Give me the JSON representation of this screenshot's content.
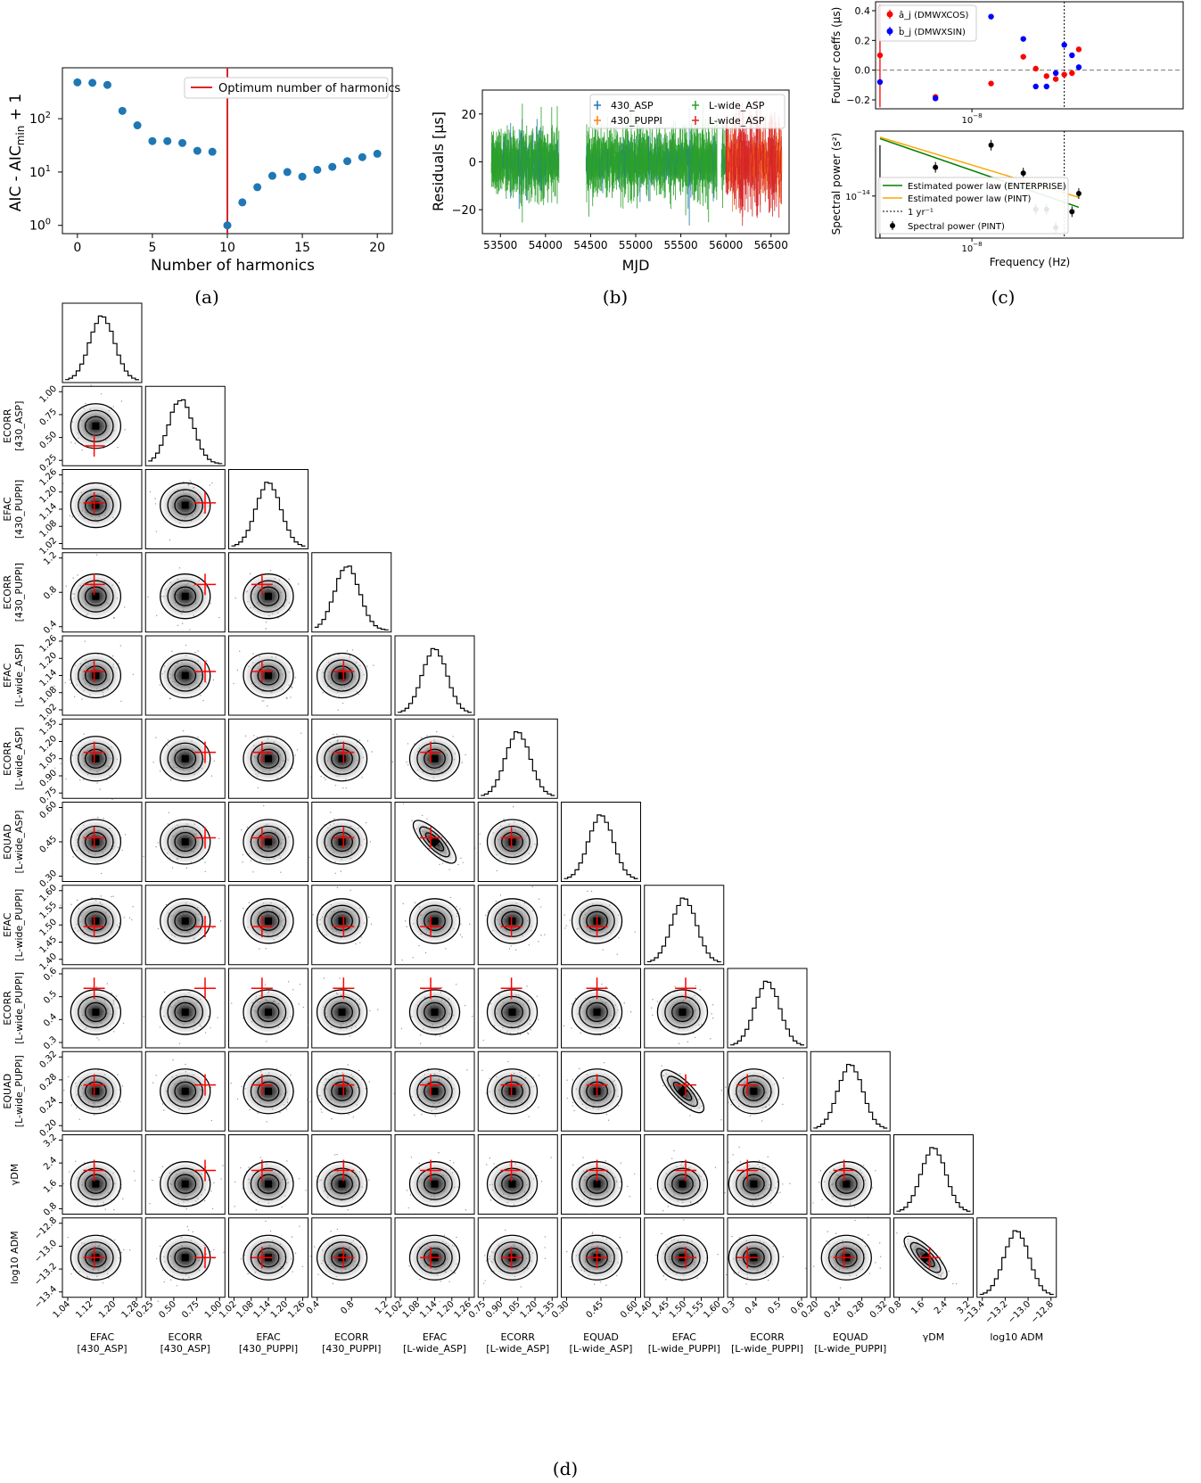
{
  "chart_data": [
    {
      "type": "scatter",
      "xlabel": "Number of harmonics",
      "ylabel": "AIC - AIC$_{\\rm min}$ + 1",
      "ylabel_parts": [
        "AIC - AIC",
        "min",
        " + 1"
      ],
      "yscale": "log",
      "xlim": [
        -1,
        21
      ],
      "ylim": [
        0.7,
        900
      ],
      "xticks": [
        "0",
        "5",
        "10",
        "15",
        "20"
      ],
      "yticks": [
        "10",
        "10",
        "10"
      ],
      "ytick_exp": [
        "0",
        "1",
        "2"
      ],
      "x": [
        0,
        1,
        2,
        3,
        4,
        5,
        6,
        7,
        8,
        9,
        10,
        11,
        12,
        13,
        14,
        15,
        16,
        17,
        18,
        19,
        20
      ],
      "y": [
        480,
        470,
        430,
        140,
        75,
        38,
        38,
        35,
        25,
        24,
        1,
        2.7,
        5.2,
        8.5,
        10,
        8.2,
        11,
        12.5,
        16,
        19,
        22
      ],
      "vline": 10,
      "legend": [
        "Optimum number of harmonics"
      ],
      "caption": "(a)"
    },
    {
      "type": "scatter",
      "xlabel": "MJD",
      "ylabel": "Residuals [μs]",
      "xlim": [
        53300,
        56700
      ],
      "ylim": [
        -30,
        30
      ],
      "xticks": [
        "53500",
        "54000",
        "54500",
        "55000",
        "55500",
        "56000",
        "56500"
      ],
      "xtick_values": [
        53500,
        54000,
        54500,
        55000,
        55500,
        56000,
        56500
      ],
      "yticks": [
        "20",
        "0",
        "−20"
      ],
      "ytick_values": [
        20,
        0,
        -20
      ],
      "segments": [
        [
          53400,
          54150
        ],
        [
          54450,
          55900
        ],
        [
          55950,
          56620
        ]
      ],
      "series": [
        {
          "name": "430_ASP",
          "color": "#1f77b4"
        },
        {
          "name": "430_PUPPI",
          "color": "#ff7f0e"
        },
        {
          "name": "L-wide_ASP",
          "color": "#2ca02c"
        },
        {
          "name": "L-wide_ASP",
          "color": "#d62728"
        }
      ],
      "caption": "(b)"
    },
    {
      "type": "scatter",
      "ylabel": "Fourier coeffs (μs)",
      "xscale": "log",
      "xlim": [
        3e-09,
        1.4e-07
      ],
      "ylim": [
        -0.26,
        0.46
      ],
      "yticks": [
        "0.4",
        "0.2",
        "0.0",
        "−0.2"
      ],
      "ytick_values": [
        0.4,
        0.2,
        0.0,
        -0.2
      ],
      "xtick_label": "10",
      "xtick_exp": "−8",
      "series": [
        {
          "name": "â_j (DMWXCOS)",
          "color": "#ff0000",
          "x": [
            3.17e-09,
            6.34e-09,
            9.51e-09,
            1.27e-08,
            1.59e-08,
            1.9e-08,
            2.22e-08,
            2.54e-08,
            2.85e-08,
            3.17e-08,
            3.49e-08,
            3.8e-08
          ],
          "y": [
            0.1,
            -0.18,
            0.0,
            -0.09,
            0.0,
            0.09,
            0.01,
            -0.04,
            -0.06,
            -0.03,
            -0.02,
            0.14
          ]
        },
        {
          "name": "b̂_j (DMWXSIN)",
          "color": "#0000ff",
          "x": [
            3.17e-09,
            6.34e-09,
            9.51e-09,
            1.27e-08,
            1.59e-08,
            1.9e-08,
            2.22e-08,
            2.54e-08,
            2.85e-08,
            3.17e-08,
            3.49e-08,
            3.8e-08
          ],
          "y": [
            -0.08,
            -0.19,
            0.0,
            0.36,
            0.0,
            0.21,
            -0.11,
            -0.11,
            -0.02,
            0.17,
            0.1,
            0.02
          ]
        }
      ]
    },
    {
      "type": "line",
      "xlabel": "Frequency (Hz)",
      "ylabel": "Spectral power (s²)",
      "xscale": "log",
      "yscale": "log",
      "ytick_label": "10",
      "ytick_exp": "−14",
      "xtick_label": "10",
      "xtick_exp": "−8",
      "legend": [
        "Estimated power law (ENTERPRISE)",
        "Estimated power law (PINT)",
        "1 yr⁻¹",
        "Spectral power (PINT)"
      ],
      "series": [
        {
          "name": "Estimated power law (ENTERPRISE)",
          "color": "#008000"
        },
        {
          "name": "Estimated power law (PINT)",
          "color": "#ffa500"
        },
        {
          "name": "Spectral power (PINT)",
          "color": "#000000",
          "x": [
            6.34e-09,
            1.27e-08,
            1.9e-08,
            2.22e-08,
            2.54e-08,
            2.85e-08,
            3.17e-08,
            3.49e-08,
            3.8e-08
          ],
          "y": [
            3e-14,
            7e-14,
            2.4e-14,
            6e-15,
            6e-15,
            3e-15,
            1.4e-14,
            5.5e-15,
            1.1e-14
          ]
        }
      ],
      "caption": "(c)"
    },
    {
      "type": "scatter",
      "subtype": "corner",
      "params": [
        {
          "label": "EFAC",
          "sub": "[430_ASP]",
          "ticks": [
            "1.04",
            "1.12",
            "1.20",
            "1.28"
          ]
        },
        {
          "label": "ECORR",
          "sub": "[430_ASP]",
          "ticks": [
            "0.25",
            "0.50",
            "0.75",
            "1.00"
          ]
        },
        {
          "label": "EFAC",
          "sub": "[430_PUPPI]",
          "ticks": [
            "1.02",
            "1.08",
            "1.14",
            "1.20",
            "1.26"
          ]
        },
        {
          "label": "ECORR",
          "sub": "[430_PUPPI]",
          "ticks": [
            "0.4",
            "0.8",
            "1.2"
          ]
        },
        {
          "label": "EFAC",
          "sub": "[L-wide_ASP]",
          "ticks": [
            "1.02",
            "1.08",
            "1.14",
            "1.20",
            "1.26"
          ]
        },
        {
          "label": "ECORR",
          "sub": "[L-wide_ASP]",
          "ticks": [
            "0.75",
            "0.90",
            "1.05",
            "1.20",
            "1.35"
          ]
        },
        {
          "label": "EQUAD",
          "sub": "[L-wide_ASP]",
          "ticks": [
            "0.30",
            "0.45",
            "0.60"
          ]
        },
        {
          "label": "EFAC",
          "sub": "[L-wide_PUPPI]",
          "ticks": [
            "1.40",
            "1.45",
            "1.50",
            "1.55",
            "1.60"
          ]
        },
        {
          "label": "ECORR",
          "sub": "[L-wide_PUPPI]",
          "ticks": [
            "0.3",
            "0.4",
            "0.5",
            "0.6"
          ]
        },
        {
          "label": "EQUAD",
          "sub": "[L-wide_PUPPI]",
          "ticks": [
            "0.20",
            "0.24",
            "0.28",
            "0.32"
          ]
        },
        {
          "label": "γDM",
          "sub": "",
          "ticks": [
            "0.8",
            "1.6",
            "2.4",
            "3.2"
          ]
        },
        {
          "label": "log10 ADM",
          "sub": "",
          "ticks": [
            "−13.4",
            "−13.2",
            "−13.0",
            "−12.8"
          ]
        }
      ],
      "caption": "(d)"
    }
  ]
}
